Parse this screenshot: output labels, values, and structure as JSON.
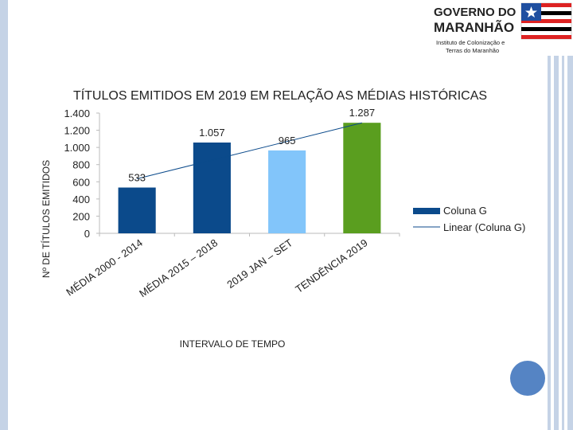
{
  "header": {
    "logo_line1": "GOVERNO DO",
    "logo_line2": "MARANHÃO",
    "logo_line3": "Instituto de Colonização e",
    "logo_line4": "Terras do Maranhão"
  },
  "chart_data": {
    "type": "bar",
    "title": "TÍTULOS EMITIDOS EM 2019 EM RELAÇÃO AS MÉDIAS HISTÓRICAS",
    "y_label": "Nº DE TÍTULOS EMITIDOS",
    "x_label": "INTERVALO DE TEMPO",
    "categories": [
      "MÉDIA 2000 - 2014",
      "MÉDIA 2015 – 2018",
      "2019 JAN – SET",
      "TENDÊNCIA 2019"
    ],
    "series": [
      {
        "name": "Coluna G",
        "color": "#0b4a8b",
        "colors": [
          "#0b4a8b",
          "#0b4a8b",
          "#82c5fa",
          "#5a9e1f"
        ],
        "values": [
          533,
          1057,
          965,
          1287
        ],
        "value_labels": [
          "533",
          "1.057",
          "965",
          "1.287"
        ]
      }
    ],
    "trendline": {
      "name": "Linear (Coluna G)",
      "color": "#0b4a8b"
    },
    "ylim": [
      0,
      1400
    ],
    "yticks": [
      0,
      200,
      400,
      600,
      800,
      {
        "value": 1000,
        "label": "1.000"
      },
      {
        "value": 1200,
        "label": "1.200"
      },
      {
        "value": 1400,
        "label": "1.400"
      }
    ],
    "grid": false
  }
}
